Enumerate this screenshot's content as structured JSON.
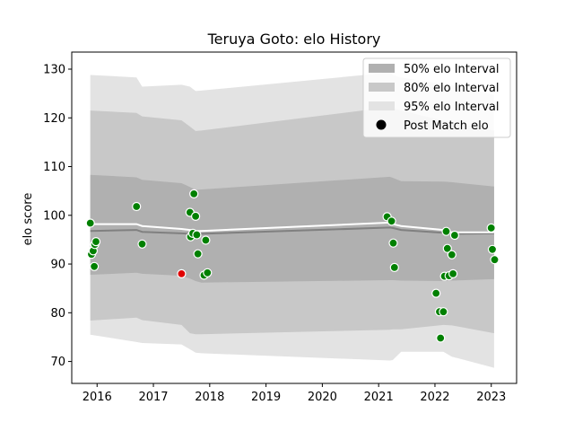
{
  "chart_data": {
    "type": "scatter",
    "title": "Teruya Goto: elo History",
    "xlabel": "",
    "ylabel": "elo score",
    "xlim": [
      2015.55,
      2023.45
    ],
    "ylim": [
      65.5,
      133.5
    ],
    "x_ticks": [
      2016,
      2017,
      2018,
      2019,
      2020,
      2021,
      2022,
      2023
    ],
    "x_tick_labels": [
      "2016",
      "2017",
      "2018",
      "2019",
      "2020",
      "2021",
      "2022",
      "2023"
    ],
    "y_ticks": [
      70,
      80,
      90,
      100,
      110,
      120,
      130
    ],
    "y_tick_labels": [
      "70",
      "80",
      "90",
      "100",
      "110",
      "120",
      "130"
    ],
    "grid": false,
    "legend_position": "top-right",
    "legend": [
      {
        "label": "50% elo Interval",
        "kind": "band",
        "color": "#b0b0b0"
      },
      {
        "label": "80% elo Interval",
        "kind": "band",
        "color": "#c8c8c8"
      },
      {
        "label": "95% elo Interval",
        "kind": "band",
        "color": "#e3e3e3"
      },
      {
        "label": "Post Match elo",
        "kind": "dot",
        "color": "#000000"
      }
    ],
    "interval_x": [
      2015.88,
      2016.7,
      2016.8,
      2017.5,
      2017.65,
      2017.75,
      2017.85,
      2021.2,
      2021.25,
      2021.4,
      2022.15,
      2022.3,
      2023.05
    ],
    "center_line": [
      96.8,
      97.0,
      96.6,
      96.3,
      96.2,
      96.1,
      96.2,
      97.5,
      97.4,
      97.0,
      96.4,
      96.2,
      96.3
    ],
    "band_50": {
      "upper": [
        108.3,
        107.8,
        107.3,
        106.6,
        105.8,
        105.2,
        105.3,
        107.9,
        107.7,
        107.0,
        106.9,
        106.8,
        105.9
      ],
      "lower": [
        87.8,
        88.2,
        88.0,
        87.6,
        87.0,
        86.5,
        86.2,
        86.7,
        86.7,
        86.6,
        86.5,
        86.6,
        86.9
      ]
    },
    "band_80": {
      "upper": [
        121.5,
        121.0,
        120.3,
        119.5,
        118.2,
        117.3,
        117.4,
        122.2,
        122.0,
        121.5,
        119.4,
        119.0,
        117.4
      ],
      "lower": [
        78.4,
        79.0,
        78.5,
        77.5,
        75.8,
        75.6,
        75.6,
        76.5,
        76.6,
        76.6,
        77.5,
        77.4,
        75.8
      ]
    },
    "band_95": {
      "upper": [
        128.8,
        128.3,
        126.4,
        126.8,
        126.4,
        125.5,
        125.6,
        129.3,
        128.8,
        128.3,
        126.9,
        126.7,
        124.7
      ],
      "lower": [
        75.5,
        74.0,
        73.8,
        73.5,
        72.5,
        71.8,
        71.7,
        70.2,
        70.3,
        72.0,
        72.0,
        71.0,
        68.7
      ]
    },
    "mean_line": {
      "x": [
        2015.88,
        2016.7,
        2016.8,
        2017.5,
        2017.65,
        2017.75,
        2017.85,
        2021.2,
        2021.25,
        2021.4,
        2022.15,
        2022.3,
        2023.05
      ],
      "y": [
        98.2,
        98.2,
        97.8,
        97.2,
        97.0,
        96.8,
        96.8,
        98.5,
        98.2,
        97.8,
        97.0,
        96.5,
        96.5
      ]
    },
    "series": [
      {
        "name": "Post Match elo",
        "color": "#008000",
        "points": [
          {
            "x": 2015.88,
            "y": 98.4
          },
          {
            "x": 2015.9,
            "y": 92.0
          },
          {
            "x": 2015.93,
            "y": 92.7
          },
          {
            "x": 2015.95,
            "y": 89.5
          },
          {
            "x": 2015.96,
            "y": 94.0
          },
          {
            "x": 2015.98,
            "y": 94.6
          },
          {
            "x": 2016.7,
            "y": 101.8
          },
          {
            "x": 2016.8,
            "y": 94.1
          },
          {
            "x": 2017.65,
            "y": 100.6
          },
          {
            "x": 2017.66,
            "y": 95.6
          },
          {
            "x": 2017.7,
            "y": 96.3
          },
          {
            "x": 2017.72,
            "y": 104.4
          },
          {
            "x": 2017.75,
            "y": 99.8
          },
          {
            "x": 2017.77,
            "y": 96.0
          },
          {
            "x": 2017.79,
            "y": 92.1
          },
          {
            "x": 2017.9,
            "y": 87.7
          },
          {
            "x": 2017.93,
            "y": 94.9
          },
          {
            "x": 2017.96,
            "y": 88.2
          },
          {
            "x": 2021.15,
            "y": 99.7
          },
          {
            "x": 2021.23,
            "y": 98.8
          },
          {
            "x": 2021.26,
            "y": 94.3
          },
          {
            "x": 2021.28,
            "y": 89.3
          },
          {
            "x": 2022.02,
            "y": 84.0
          },
          {
            "x": 2022.08,
            "y": 80.2
          },
          {
            "x": 2022.1,
            "y": 74.8
          },
          {
            "x": 2022.15,
            "y": 80.2
          },
          {
            "x": 2022.17,
            "y": 87.5
          },
          {
            "x": 2022.2,
            "y": 96.7
          },
          {
            "x": 2022.22,
            "y": 93.2
          },
          {
            "x": 2022.25,
            "y": 87.6
          },
          {
            "x": 2022.3,
            "y": 91.9
          },
          {
            "x": 2022.32,
            "y": 88.0
          },
          {
            "x": 2022.35,
            "y": 95.9
          },
          {
            "x": 2023.0,
            "y": 97.4
          },
          {
            "x": 2023.02,
            "y": 93.0
          },
          {
            "x": 2023.06,
            "y": 90.9
          }
        ]
      },
      {
        "name": "",
        "color": "#e00000",
        "points": [
          {
            "x": 2017.5,
            "y": 88.0
          }
        ]
      }
    ]
  }
}
